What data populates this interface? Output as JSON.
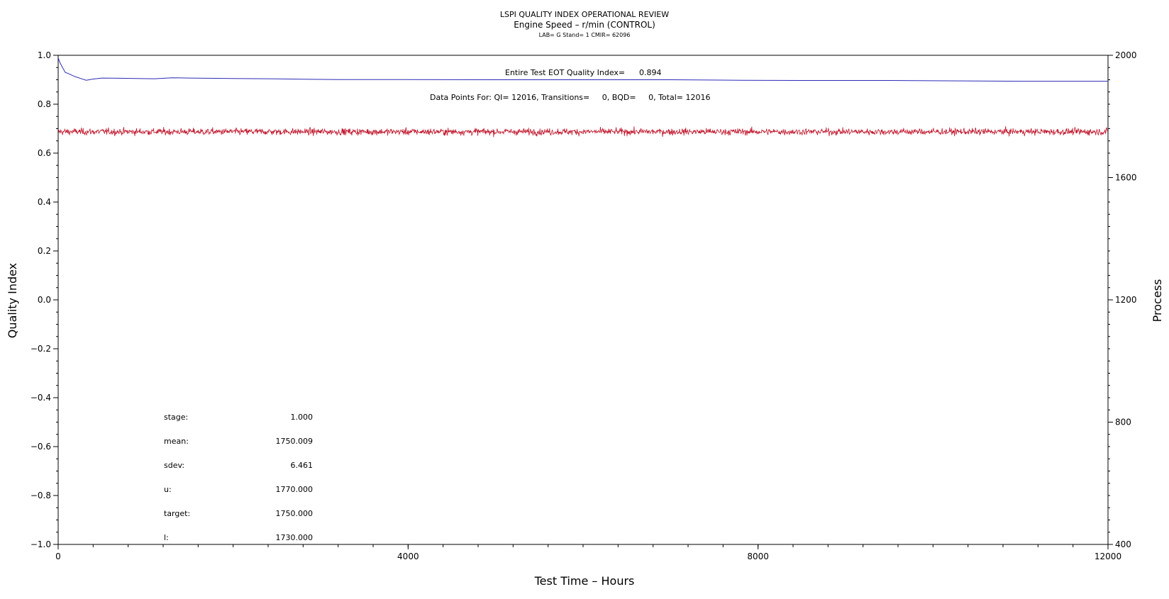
{
  "chart_data": {
    "type": "line",
    "title": "LSPI QUALITY INDEX OPERATIONAL REVIEW",
    "subtitle": "Engine Speed – r/min (CONTROL)",
    "subtitle2": "LAB= G Stand= 1 CMIR= 62096",
    "xlabel": "Test Time – Hours",
    "ylabel_left": "Quality Index",
    "ylabel_right": "Process",
    "xlim": [
      0,
      12000
    ],
    "ylim_left": [
      -1.0,
      1.0
    ],
    "ylim_right": [
      400,
      2000
    ],
    "x_ticks": [
      "0",
      "4000",
      "8000",
      "12000"
    ],
    "y_left_ticks": [
      "1.0",
      "0.8",
      "0.6",
      "0.4",
      "0.2",
      "0.0",
      "−0.2",
      "−0.4",
      "−0.6",
      "−0.8",
      "−1.0"
    ],
    "y_right_ticks": [
      "2000",
      "1600",
      "1200",
      "800",
      "400"
    ],
    "annotation_qi_label": "Entire Test EOT Quality Index=",
    "annotation_qi_value": "0.894",
    "annotation_points": "Data Points For: QI= 12016, Transitions=     0, BQD=     0, Total= 12016",
    "series": [
      {
        "axis": "left",
        "color": "#2b2bb8",
        "x": [
          0,
          20,
          50,
          80,
          120,
          160,
          200,
          260,
          320,
          400,
          500,
          700,
          900,
          1100,
          1300,
          1500,
          1700,
          2000,
          2400,
          2800,
          3200,
          4000,
          5000,
          6000,
          7000,
          7800,
          8500,
          9500,
          10500,
          11000,
          12000
        ],
        "y": [
          0.99,
          0.97,
          0.95,
          0.93,
          0.925,
          0.918,
          0.912,
          0.905,
          0.898,
          0.903,
          0.907,
          0.906,
          0.905,
          0.904,
          0.908,
          0.907,
          0.906,
          0.905,
          0.904,
          0.902,
          0.901,
          0.901,
          0.9,
          0.9,
          0.9,
          0.898,
          0.897,
          0.897,
          0.895,
          0.894,
          0.894
        ]
      },
      {
        "axis": "right",
        "color": "#c0162c",
        "points": 12016,
        "mean": 1750.009,
        "sdev": 6.461,
        "range": [
          1730,
          1770
        ]
      }
    ],
    "stats": [
      {
        "label": "stage:",
        "value": "1.000"
      },
      {
        "label": "mean:",
        "value": "1750.009"
      },
      {
        "label": "sdev:",
        "value": "6.461"
      },
      {
        "label": "u:",
        "value": "1770.000"
      },
      {
        "label": "target:",
        "value": "1750.000"
      },
      {
        "label": "l:",
        "value": "1730.000"
      }
    ]
  }
}
